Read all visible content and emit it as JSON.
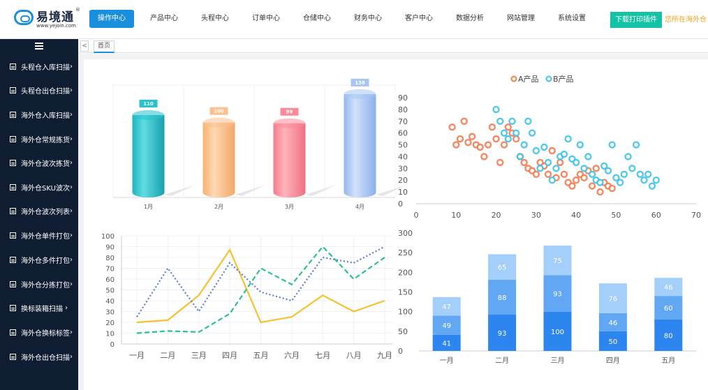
{
  "header": {
    "logo_name": "易境通",
    "logo_reg": "®",
    "logo_url": "www.yejoin.com",
    "nav": [
      "操作中心",
      "产品中心",
      "头程中心",
      "订单中心",
      "仓储中心",
      "财务中心",
      "客户中心",
      "数据分析",
      "网站管理",
      "系统设置"
    ],
    "download_button": "下载打印插件",
    "location_text": "您所在海外仓"
  },
  "sidebar": {
    "menu_icon": "menu-icon",
    "items": [
      "头程仓入库扫描",
      "头程仓出仓扫描",
      "海外仓入库扫描",
      "海外仓常规拣货",
      "海外仓波次拣货",
      "海外仓SKU波次",
      "海外仓波次列表",
      "海外仓单件打包",
      "海外仓多件打包",
      "海外仓分拣打包",
      "换标装箱扫描",
      "海外仓换标标签",
      "海外仓出仓扫描"
    ]
  },
  "tabs": {
    "arrow": "<",
    "home": "首页"
  },
  "colors": {
    "accent": "#1a8fdd",
    "sidebar_bg": "#0e1d31",
    "download": "#14c3a6",
    "location": "#f5a623"
  },
  "chart_data": [
    {
      "type": "bar",
      "categories": [
        "1月",
        "2月",
        "3月",
        "4月"
      ],
      "values": [
        110,
        100,
        99,
        138
      ],
      "colors": [
        "#27c3cd",
        "#fbc08e",
        "#f98c98",
        "#a8c6f4"
      ],
      "ylim": [
        0,
        150
      ],
      "grid": true
    },
    {
      "type": "scatter",
      "series": [
        {
          "name": "A产品",
          "color": "#f47c50",
          "points": [
            [
              9,
              65
            ],
            [
              10,
              50
            ],
            [
              11,
              55
            ],
            [
              12,
              70
            ],
            [
              13,
              52
            ],
            [
              14,
              57
            ],
            [
              15,
              50
            ],
            [
              16,
              48
            ],
            [
              17,
              40
            ],
            [
              18,
              50
            ],
            [
              19,
              65
            ],
            [
              20,
              55
            ],
            [
              21,
              35
            ],
            [
              22,
              50
            ],
            [
              23,
              65
            ],
            [
              24,
              60
            ],
            [
              25,
              55
            ],
            [
              26,
              40
            ],
            [
              27,
              35
            ],
            [
              28,
              30
            ],
            [
              29,
              28
            ],
            [
              30,
              25
            ],
            [
              31,
              35
            ],
            [
              32,
              32
            ],
            [
              33,
              25
            ],
            [
              34,
              45
            ],
            [
              35,
              22
            ],
            [
              36,
              35
            ],
            [
              37,
              25
            ],
            [
              38,
              18
            ],
            [
              39,
              15
            ],
            [
              40,
              20
            ],
            [
              41,
              25
            ],
            [
              42,
              22
            ],
            [
              43,
              28
            ],
            [
              44,
              15
            ],
            [
              45,
              30
            ],
            [
              46,
              10
            ],
            [
              47,
              18
            ],
            [
              48,
              15
            ],
            [
              49,
              13
            ]
          ]
        },
        {
          "name": "B产品",
          "color": "#40c3ee",
          "points": [
            [
              20,
              80
            ],
            [
              21,
              70
            ],
            [
              22,
              60
            ],
            [
              23,
              55
            ],
            [
              24,
              70
            ],
            [
              25,
              60
            ],
            [
              26,
              40
            ],
            [
              27,
              50
            ],
            [
              28,
              70
            ],
            [
              29,
              60
            ],
            [
              30,
              45
            ],
            [
              31,
              30
            ],
            [
              32,
              48
            ],
            [
              33,
              35
            ],
            [
              34,
              20
            ],
            [
              35,
              30
            ],
            [
              36,
              40
            ],
            [
              37,
              42
            ],
            [
              38,
              55
            ],
            [
              39,
              38
            ],
            [
              40,
              35
            ],
            [
              41,
              50
            ],
            [
              42,
              30
            ],
            [
              43,
              40
            ],
            [
              44,
              25
            ],
            [
              45,
              20
            ],
            [
              46,
              18
            ],
            [
              47,
              32
            ],
            [
              48,
              28
            ],
            [
              49,
              50
            ],
            [
              50,
              22
            ],
            [
              51,
              18
            ],
            [
              52,
              25
            ],
            [
              53,
              40
            ],
            [
              54,
              30
            ],
            [
              55,
              50
            ],
            [
              56,
              25
            ],
            [
              57,
              20
            ],
            [
              58,
              25
            ],
            [
              59,
              15
            ],
            [
              60,
              20
            ]
          ]
        }
      ],
      "legend": "top-center",
      "xlim": [
        0,
        70
      ],
      "ylim": [
        0,
        90
      ],
      "xticks": [
        0,
        10,
        20,
        30,
        40,
        50,
        60,
        70
      ],
      "yticks": [
        0,
        10,
        20,
        30,
        40,
        50,
        60,
        70,
        80,
        90
      ]
    },
    {
      "type": "line",
      "categories": [
        "一月",
        "二月",
        "三月",
        "四月",
        "五月",
        "六月",
        "七月",
        "八月",
        "九月"
      ],
      "series": [
        {
          "color": "#f6c12d",
          "style": "solid",
          "values": [
            20,
            22,
            45,
            87,
            20,
            25,
            45,
            30,
            40
          ]
        },
        {
          "color": "#5b7ae0",
          "style": "dotted",
          "values": [
            25,
            70,
            30,
            75,
            48,
            40,
            80,
            75,
            90
          ]
        },
        {
          "color": "#28c28f",
          "style": "dashed",
          "values": [
            10,
            12,
            11,
            28,
            70,
            55,
            90,
            60,
            80
          ]
        }
      ],
      "ylim": [
        0,
        100
      ],
      "yticks": [
        0,
        10,
        20,
        30,
        40,
        50,
        60,
        70,
        80,
        90,
        100
      ]
    },
    {
      "type": "bar",
      "stacked": true,
      "categories": [
        "一月",
        "二月",
        "三月",
        "四月",
        "五月"
      ],
      "series": [
        {
          "color": "#2d85ef",
          "values": [
            41,
            93,
            100,
            50,
            80
          ]
        },
        {
          "color": "#62a7f4",
          "values": [
            49,
            88,
            93,
            46,
            60
          ]
        },
        {
          "color": "#a4cffa",
          "values": [
            47,
            65,
            75,
            76,
            46
          ]
        }
      ],
      "ylim": [
        0,
        300
      ],
      "yticks": [
        0,
        50,
        100,
        150,
        200,
        250,
        300
      ]
    }
  ]
}
